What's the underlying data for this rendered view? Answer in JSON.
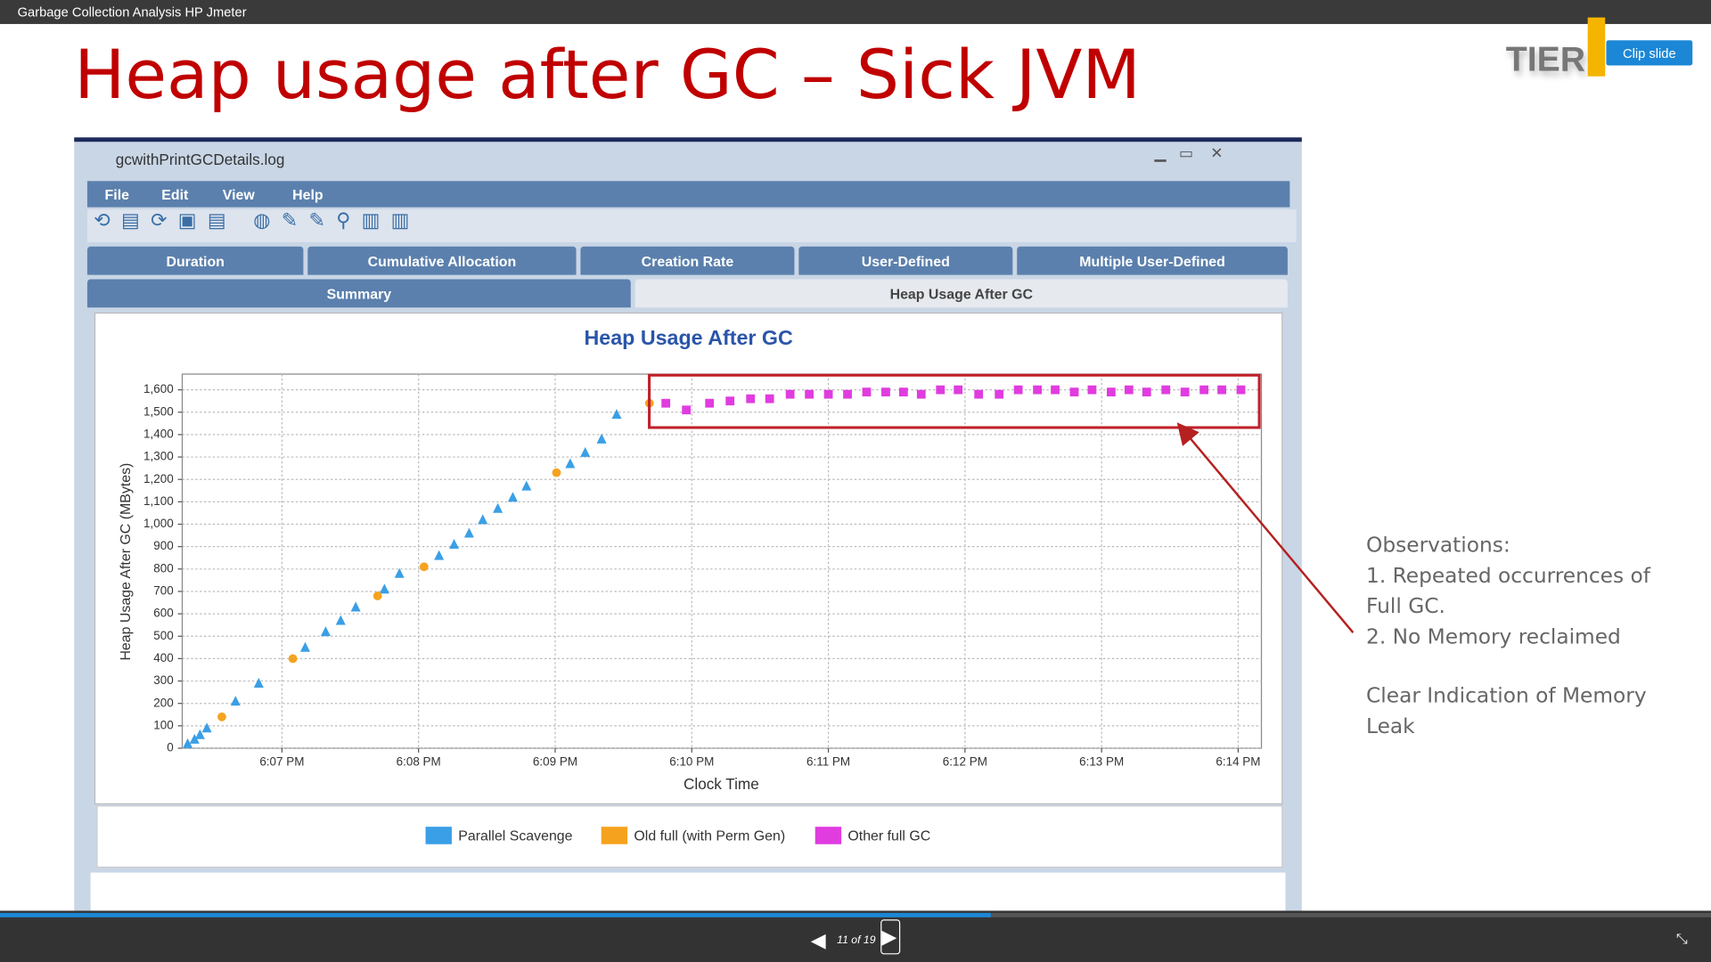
{
  "header": {
    "title": "Garbage Collection Analysis HP Jmeter"
  },
  "slide": {
    "title": "Heap usage after GC – Sick JVM",
    "logo": "TIER",
    "clip_button": "Clip slide"
  },
  "window": {
    "title": "gcwithPrintGCDetails.log",
    "menu": [
      "File",
      "Edit",
      "View",
      "Help"
    ],
    "tabs": [
      "Duration",
      "Cumulative Allocation",
      "Creation Rate",
      "User-Defined",
      "Multiple User-Defined"
    ],
    "subtabs": [
      "Summary",
      "Heap Usage After GC"
    ]
  },
  "chart_data": {
    "type": "scatter",
    "title": "Heap Usage After GC",
    "x_label": "Clock Time",
    "y_label": "Heap Usage After GC  (MBytes)",
    "xlim": [
      1086.27,
      1094.17
    ],
    "ylim": [
      0,
      1670
    ],
    "grid": true,
    "xticks": [
      {
        "value": 1087,
        "label": "6:07 PM"
      },
      {
        "value": 1088,
        "label": "6:08 PM"
      },
      {
        "value": 1089,
        "label": "6:09 PM"
      },
      {
        "value": 1090,
        "label": "6:10 PM"
      },
      {
        "value": 1091,
        "label": "6:11 PM"
      },
      {
        "value": 1092,
        "label": "6:12 PM"
      },
      {
        "value": 1093,
        "label": "6:13 PM"
      },
      {
        "value": 1094,
        "label": "6:14 PM"
      }
    ],
    "yticks": [
      0,
      100,
      200,
      300,
      400,
      500,
      600,
      700,
      800,
      900,
      {
        "value": 1000,
        "label": "1,000"
      },
      {
        "value": 1100,
        "label": "1,100"
      },
      {
        "value": 1200,
        "label": "1,200"
      },
      {
        "value": 1300,
        "label": "1,300"
      },
      {
        "value": 1400,
        "label": "1,400"
      },
      {
        "value": 1500,
        "label": "1,500"
      },
      {
        "value": 1600,
        "label": "1,600"
      }
    ],
    "series": [
      {
        "name": "Parallel Scavenge",
        "color": "#3a9fe6",
        "marker": "triangle",
        "x": [
          1086.31,
          1086.36,
          1086.4,
          1086.45,
          1086.66,
          1086.83,
          1087.17,
          1087.32,
          1087.43,
          1087.54,
          1087.75,
          1087.86,
          1088.15,
          1088.26,
          1088.37,
          1088.47,
          1088.58,
          1088.69,
          1088.79,
          1089.11,
          1089.22,
          1089.34,
          1089.45
        ],
        "values": [
          20,
          40,
          60,
          90,
          210,
          290,
          450,
          520,
          570,
          630,
          710,
          780,
          860,
          910,
          960,
          1020,
          1070,
          1120,
          1170,
          1270,
          1320,
          1380,
          1490
        ]
      },
      {
        "name": "Old full (with Perm Gen)",
        "color": "#f5a31f",
        "marker": "circle",
        "x": [
          1086.56,
          1087.08,
          1087.7,
          1088.04,
          1089.01,
          1089.69
        ],
        "values": [
          140,
          400,
          680,
          810,
          1230,
          1540
        ]
      },
      {
        "name": "Other full GC",
        "color": "#e03ce0",
        "marker": "square",
        "x": [
          1089.81,
          1089.96,
          1090.13,
          1090.28,
          1090.43,
          1090.57,
          1090.72,
          1090.86,
          1091.0,
          1091.14,
          1091.28,
          1091.42,
          1091.55,
          1091.68,
          1091.82,
          1091.95,
          1092.1,
          1092.25,
          1092.39,
          1092.53,
          1092.66,
          1092.8,
          1092.93,
          1093.07,
          1093.2,
          1093.33,
          1093.47,
          1093.61,
          1093.75,
          1093.88,
          1094.02
        ],
        "values": [
          1540,
          1510,
          1540,
          1550,
          1560,
          1560,
          1580,
          1580,
          1580,
          1580,
          1590,
          1590,
          1590,
          1580,
          1600,
          1600,
          1580,
          1580,
          1600,
          1600,
          1600,
          1590,
          1600,
          1590,
          1600,
          1590,
          1600,
          1590,
          1600,
          1600,
          1600
        ]
      }
    ]
  },
  "observations": [
    "Observations:",
    "1. Repeated occurrences of Full GC.",
    "2. No Memory reclaimed",
    "Clear Indication of Memory Leak"
  ],
  "player": {
    "page": "11 of 19"
  }
}
